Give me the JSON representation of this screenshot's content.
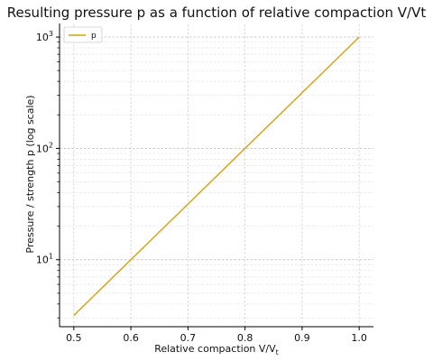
{
  "chart_data": {
    "type": "line",
    "title": "Resulting pressure p as a function of relative compaction V/Vt",
    "xlabel": "Relative compaction V/V",
    "xlabel_sub": "t",
    "ylabel": "Pressure / strength p (log scale)",
    "xlim": [
      0.475,
      1.025
    ],
    "ylim": [
      2.5,
      1300
    ],
    "yscale": "log",
    "grid": true,
    "legend": "upper-left",
    "x_ticks": [
      {
        "label": "0.5",
        "value": 0.5
      },
      {
        "label": "0.6",
        "value": 0.6
      },
      {
        "label": "0.7",
        "value": 0.7
      },
      {
        "label": "0.8",
        "value": 0.8
      },
      {
        "label": "0.9",
        "value": 0.9
      },
      {
        "label": "1.0",
        "value": 1.0
      }
    ],
    "y_ticks": [
      {
        "base": "10",
        "exp": "1",
        "value": 10
      },
      {
        "base": "10",
        "exp": "2",
        "value": 100
      },
      {
        "base": "10",
        "exp": "3",
        "value": 1000
      }
    ],
    "series": [
      {
        "name": "p",
        "color": "#d4a010",
        "x": [
          0.5,
          0.6,
          0.7,
          0.8,
          0.9,
          1.0
        ],
        "y": [
          3.16,
          10,
          31.6,
          100,
          316,
          1000
        ]
      }
    ]
  }
}
